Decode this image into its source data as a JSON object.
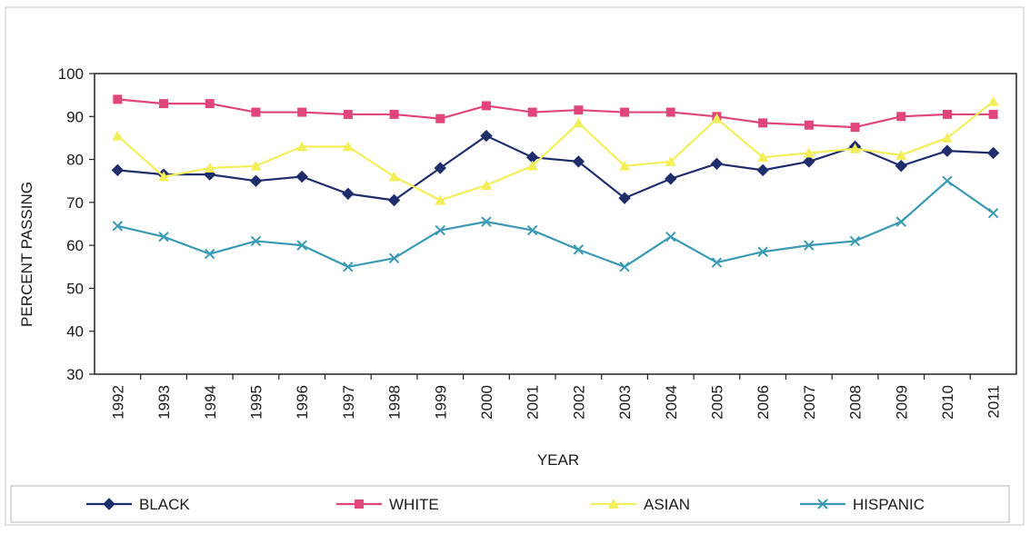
{
  "chart_data": {
    "type": "line",
    "xlabel": "YEAR",
    "ylabel": "PERCENT PASSING",
    "ylim": [
      30,
      100
    ],
    "yticks": [
      30,
      40,
      50,
      60,
      70,
      80,
      90,
      100
    ],
    "grid": false,
    "legend_position": "bottom",
    "categories": [
      "1992",
      "1993",
      "1994",
      "1995",
      "1996",
      "1997",
      "1998",
      "1999",
      "2000",
      "2001",
      "2002",
      "2003",
      "2004",
      "2005",
      "2006",
      "2007",
      "2008",
      "2009",
      "2010",
      "2011"
    ],
    "series": [
      {
        "name": "BLACK",
        "color": "#1f2d6b",
        "marker": "diamond",
        "values": [
          77.5,
          76.5,
          76.5,
          75,
          76,
          72,
          70.5,
          78,
          85.5,
          80.5,
          79.5,
          71,
          75.5,
          79,
          77.5,
          79.5,
          83,
          78.5,
          82,
          81.5
        ]
      },
      {
        "name": "WHITE",
        "color": "#e0457b",
        "marker": "square",
        "values": [
          94,
          93,
          93,
          91,
          91,
          90.5,
          90.5,
          89.5,
          92.5,
          91,
          91.5,
          91,
          91,
          90,
          88.5,
          88,
          87.5,
          90,
          90.5,
          90.5
        ]
      },
      {
        "name": "ASIAN",
        "color": "#f2ef5a",
        "marker": "triangle",
        "values": [
          85.5,
          76,
          78,
          78.5,
          83,
          83,
          76,
          70.5,
          74,
          78.5,
          88.5,
          78.5,
          79.5,
          89.5,
          80.5,
          81.5,
          82.5,
          81,
          85,
          93.5
        ]
      },
      {
        "name": "HISPANIC",
        "color": "#3a9ab3",
        "marker": "x",
        "values": [
          64.5,
          62,
          58,
          61,
          60,
          55,
          57,
          63.5,
          65.5,
          63.5,
          59,
          55,
          62,
          56,
          58.5,
          60,
          61,
          65.5,
          75,
          67.5
        ]
      }
    ]
  }
}
